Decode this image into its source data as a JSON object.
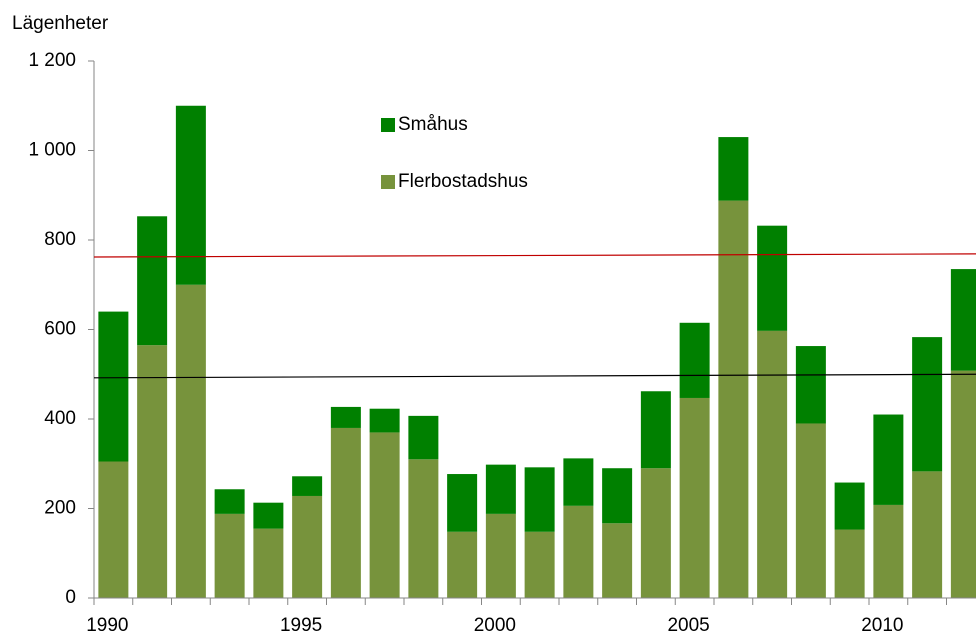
{
  "chart_data": {
    "type": "stacked_bar",
    "y_label": "Lägenheter",
    "categories": [
      "1990",
      null,
      null,
      null,
      null,
      "1995",
      null,
      null,
      null,
      null,
      "2000",
      null,
      null,
      null,
      null,
      "2005",
      null,
      null,
      null,
      null,
      "2010",
      null,
      null
    ],
    "series": [
      {
        "name": "Flerbostadshus",
        "color": "#77933c",
        "values": [
          305,
          565,
          700,
          188,
          155,
          228,
          380,
          370,
          310,
          148,
          188,
          148,
          206,
          167,
          290,
          447,
          888,
          597,
          390,
          153,
          208,
          283,
          508
        ]
      },
      {
        "name": "Småhus",
        "color": "#008000",
        "values": [
          335,
          288,
          400,
          55,
          58,
          44,
          47,
          53,
          97,
          129,
          110,
          144,
          106,
          123,
          172,
          168,
          142,
          235,
          173,
          105,
          202,
          300,
          227
        ]
      }
    ],
    "lines": [
      {
        "color": "#c00000",
        "values": [
          762,
          769
        ]
      },
      {
        "color": "#000000",
        "values": [
          492,
          500
        ]
      }
    ],
    "ylim": [
      0,
      1200
    ],
    "yticks": [
      0,
      200,
      400,
      600,
      800,
      {
        "value": 1000,
        "label": "1 000"
      },
      {
        "value": 1200,
        "label": "1 200"
      }
    ]
  }
}
